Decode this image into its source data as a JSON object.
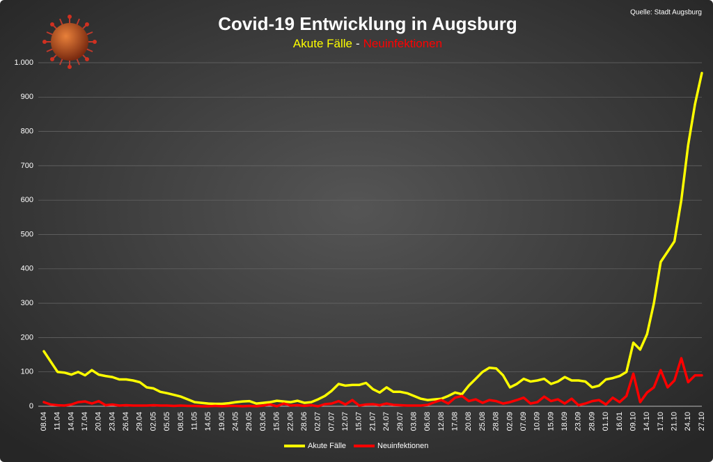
{
  "chart_data": {
    "type": "line",
    "title": "Covid-19 Entwicklung in Augsburg",
    "subtitle_parts": [
      {
        "text": "Akute Fälle",
        "color": "#ffff00"
      },
      {
        "text": "-",
        "color": "#ffffff"
      },
      {
        "text": "Neuinfektionen",
        "color": "#ff0000"
      }
    ],
    "source": "Quelle: Stadt Augsburg",
    "categories": [
      "08.04",
      null,
      "11.04",
      null,
      "14.04",
      null,
      "17.04",
      null,
      "20.04",
      null,
      "23.04",
      null,
      "26.04",
      null,
      "29.04",
      null,
      "02.05",
      null,
      "05.05",
      null,
      "08.05",
      null,
      "11.05",
      null,
      "14.05",
      null,
      "19.05",
      null,
      "24.05",
      null,
      "29.05",
      null,
      "03.06",
      null,
      "15.06",
      null,
      "22.06",
      null,
      "28.06",
      null,
      "02.07",
      null,
      "07.07",
      null,
      "12.07",
      null,
      "15.07",
      null,
      "21.07",
      null,
      "24.07",
      null,
      "29.07",
      null,
      "03.08",
      null,
      "06.08",
      null,
      "12.08",
      null,
      "17.08",
      null,
      "20.08",
      null,
      "25.08",
      null,
      "28.08",
      null,
      "02.09",
      null,
      "07.09",
      null,
      "10.09",
      null,
      "15.09",
      null,
      "18.09",
      null,
      "23.09",
      null,
      "28.09",
      null,
      "01.10",
      null,
      "16.01",
      null,
      "09.10",
      null,
      "14.10",
      null,
      "17.10",
      null,
      "21.10",
      null,
      "24.10",
      null,
      "27.10"
    ],
    "series": [
      {
        "name": "Akute Fälle",
        "color": "#ffff00",
        "values": [
          160,
          130,
          100,
          98,
          92,
          100,
          90,
          105,
          92,
          88,
          85,
          78,
          78,
          75,
          70,
          55,
          52,
          42,
          38,
          33,
          28,
          20,
          12,
          10,
          8,
          7,
          7,
          9,
          12,
          14,
          15,
          8,
          10,
          12,
          16,
          14,
          12,
          16,
          10,
          12,
          20,
          30,
          45,
          65,
          60,
          62,
          62,
          68,
          50,
          40,
          55,
          42,
          42,
          38,
          30,
          22,
          18,
          20,
          22,
          30,
          40,
          35,
          60,
          80,
          100,
          112,
          110,
          90,
          55,
          65,
          80,
          72,
          75,
          80,
          65,
          72,
          85,
          75,
          75,
          72,
          55,
          60,
          78,
          82,
          88,
          100,
          185,
          165,
          210,
          300,
          420,
          450,
          480,
          600,
          760,
          880,
          970
        ]
      },
      {
        "name": "Neuinfektionen",
        "color": "#ff0000",
        "values": [
          12,
          5,
          3,
          2,
          5,
          12,
          14,
          8,
          15,
          3,
          5,
          2,
          3,
          2,
          2,
          2,
          3,
          2,
          2,
          1,
          2,
          1,
          1,
          0,
          0,
          1,
          0,
          1,
          1,
          0,
          1,
          0,
          2,
          5,
          0,
          8,
          2,
          3,
          1,
          3,
          0,
          6,
          8,
          15,
          5,
          18,
          2,
          5,
          6,
          3,
          8,
          4,
          3,
          2,
          2,
          2,
          4,
          12,
          18,
          8,
          25,
          30,
          15,
          20,
          10,
          18,
          15,
          8,
          12,
          18,
          25,
          8,
          12,
          28,
          15,
          20,
          8,
          22,
          3,
          8,
          15,
          18,
          5,
          25,
          12,
          30,
          95,
          12,
          40,
          55,
          105,
          55,
          75,
          140,
          70,
          90,
          90
        ]
      }
    ],
    "ylim": [
      0,
      1000
    ],
    "yticks": [
      0,
      100,
      200,
      300,
      400,
      500,
      600,
      700,
      800,
      900,
      {
        "value": 1000,
        "label": "1.000"
      }
    ],
    "grid": true,
    "legend": "bottom"
  }
}
